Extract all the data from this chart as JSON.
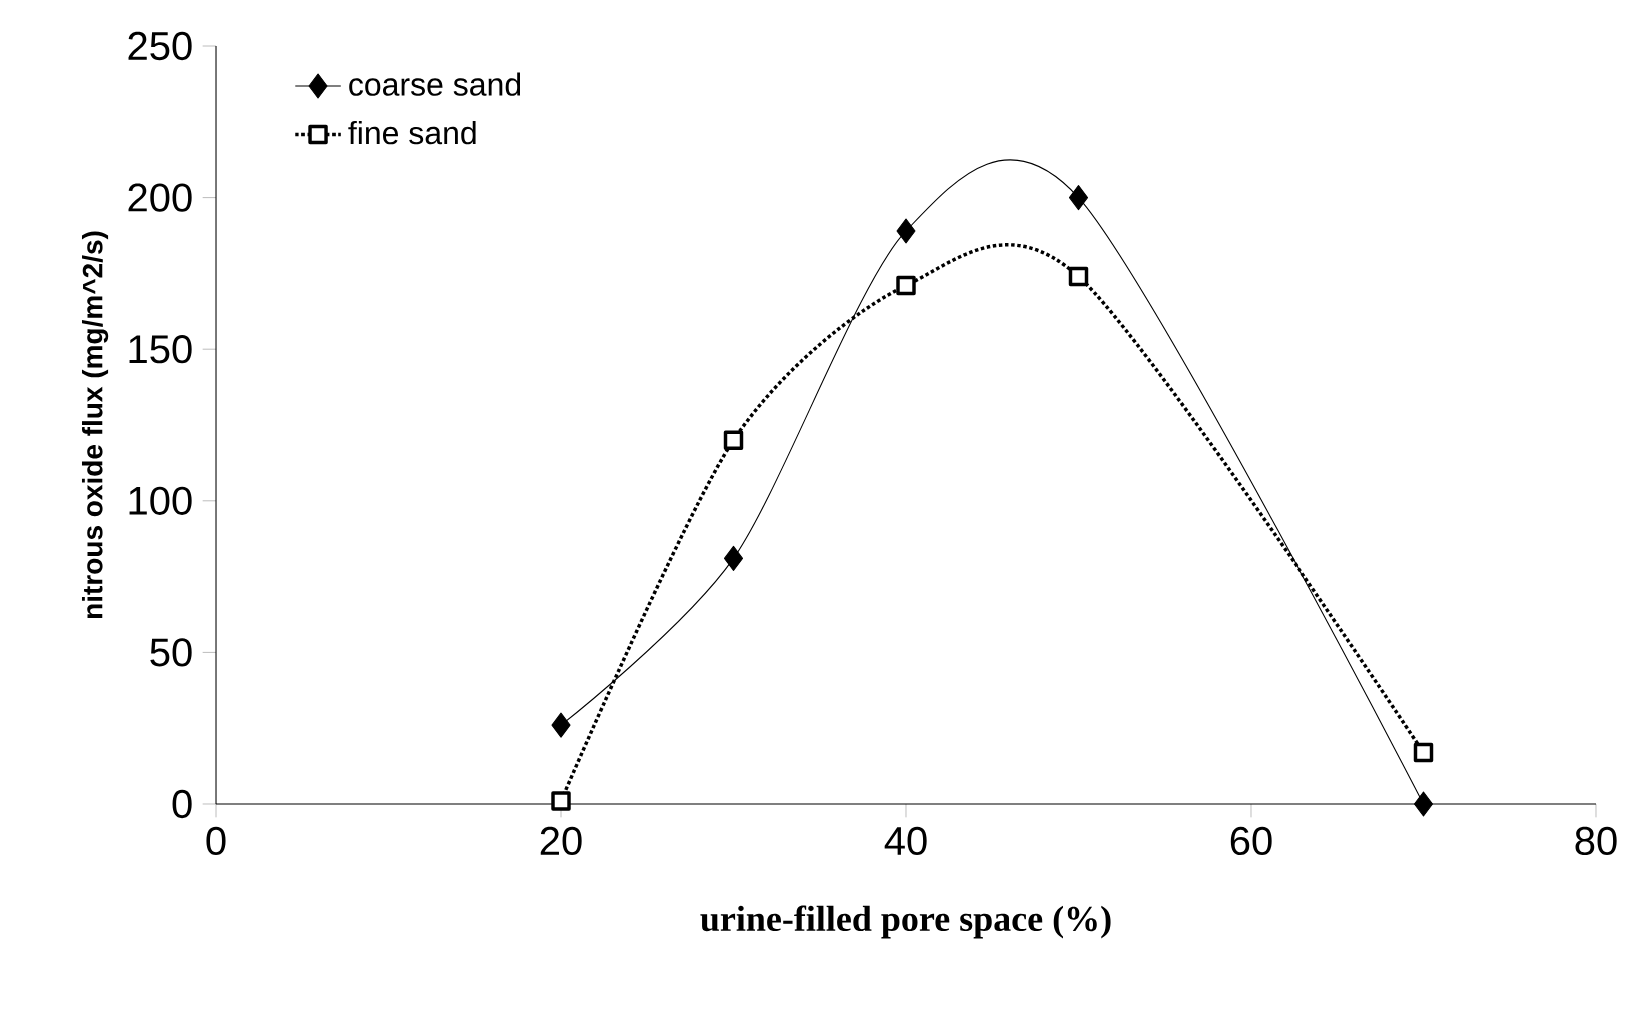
{
  "chart_data": {
    "type": "line",
    "xlabel": "urine-filled pore space (%)",
    "ylabel": "nitrous oxide flux (mg/m^2/s)",
    "xlim": [
      0,
      80
    ],
    "xticks": [
      0,
      20,
      40,
      60,
      80
    ],
    "ylim": [
      0,
      250
    ],
    "yticks": [
      0,
      50,
      100,
      150,
      200,
      250
    ],
    "legend": "top left",
    "grid": false,
    "series": [
      {
        "name": "coarse sand",
        "color": "#000000",
        "marker": "diamond",
        "line_style": "solid",
        "x": [
          20,
          30,
          40,
          50,
          70
        ],
        "values": [
          26,
          81,
          189,
          200,
          0
        ]
      },
      {
        "name": "fine sand",
        "color": "#000000",
        "marker": "square",
        "line_style": "dotted",
        "x": [
          20,
          30,
          40,
          50,
          70
        ],
        "values": [
          1,
          120,
          171,
          174,
          17
        ]
      }
    ]
  }
}
